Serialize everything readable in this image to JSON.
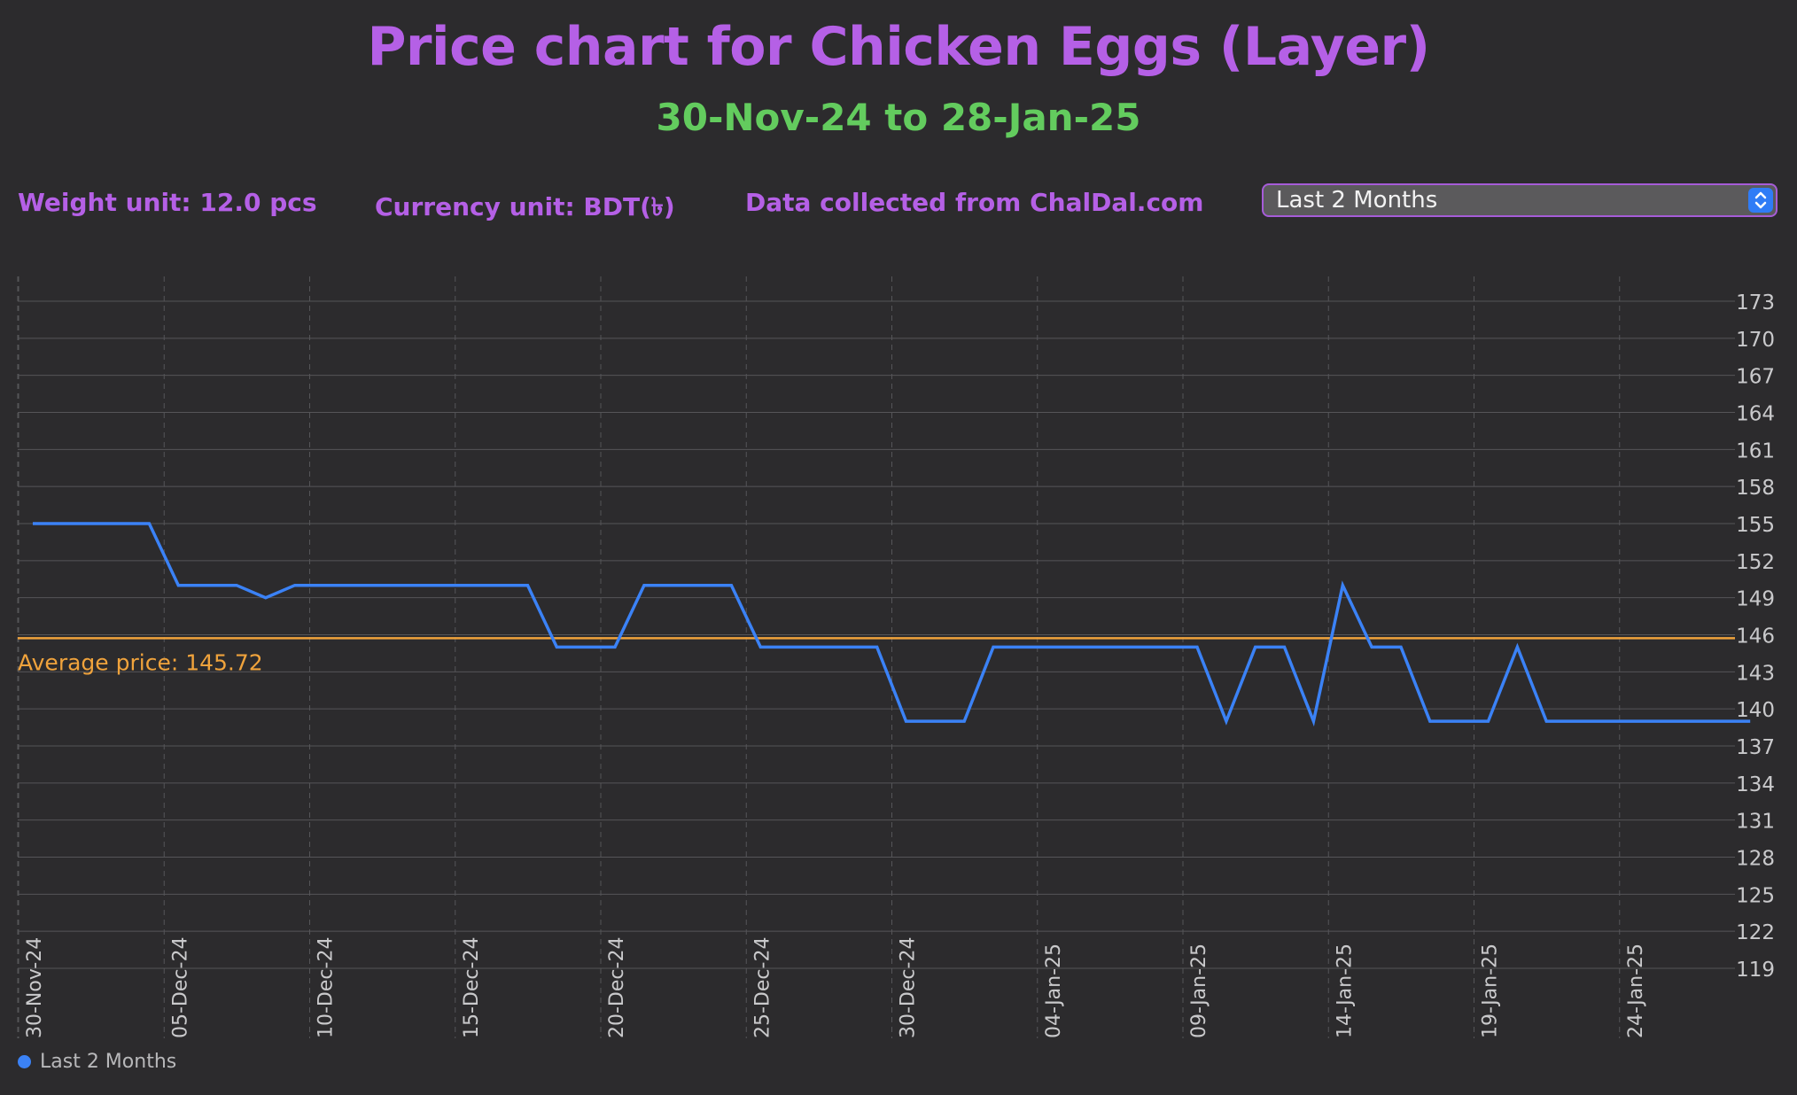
{
  "header": {
    "title": "Price chart for Chicken Eggs (Layer)",
    "subtitle": "30-Nov-24 to 28-Jan-25"
  },
  "info": {
    "weight": "Weight unit: 12.0 pcs",
    "currency": "Currency unit: BDT(৳)",
    "source": "Data collected from ChalDal.com"
  },
  "range_select": {
    "selected": "Last 2 Months",
    "icon": "up-down-chevron-icon"
  },
  "colors": {
    "title": "#b560e6",
    "subtitle": "#63cc5e",
    "series": "#3b82f6",
    "average": "#f0a33c",
    "grid": "#555558"
  },
  "chart_data": {
    "type": "line",
    "xlabel": "",
    "ylabel": "",
    "ylim": [
      119,
      173
    ],
    "y_ticks": [
      173,
      170,
      167,
      164,
      161,
      158,
      155,
      152,
      149,
      146,
      143,
      140,
      137,
      134,
      131,
      128,
      125,
      122,
      119
    ],
    "x_tick_labels": [
      "30-Nov-24",
      "05-Dec-24",
      "10-Dec-24",
      "15-Dec-24",
      "20-Dec-24",
      "25-Dec-24",
      "30-Dec-24",
      "04-Jan-25",
      "09-Jan-25",
      "14-Jan-25",
      "19-Jan-25",
      "24-Jan-25"
    ],
    "y_axis_position": "right",
    "grid": true,
    "legend_position": "bottom-left",
    "series": [
      {
        "name": "Last 2 Months",
        "x": [
          "30-Nov-24",
          "01-Dec-24",
          "02-Dec-24",
          "03-Dec-24",
          "04-Dec-24",
          "05-Dec-24",
          "06-Dec-24",
          "07-Dec-24",
          "08-Dec-24",
          "09-Dec-24",
          "10-Dec-24",
          "11-Dec-24",
          "12-Dec-24",
          "13-Dec-24",
          "14-Dec-24",
          "15-Dec-24",
          "16-Dec-24",
          "17-Dec-24",
          "18-Dec-24",
          "19-Dec-24",
          "20-Dec-24",
          "21-Dec-24",
          "22-Dec-24",
          "23-Dec-24",
          "24-Dec-24",
          "25-Dec-24",
          "26-Dec-24",
          "27-Dec-24",
          "28-Dec-24",
          "29-Dec-24",
          "30-Dec-24",
          "31-Dec-24",
          "01-Jan-25",
          "02-Jan-25",
          "03-Jan-25",
          "04-Jan-25",
          "05-Jan-25",
          "06-Jan-25",
          "07-Jan-25",
          "08-Jan-25",
          "09-Jan-25",
          "10-Jan-25",
          "11-Jan-25",
          "12-Jan-25",
          "13-Jan-25",
          "14-Jan-25",
          "15-Jan-25",
          "16-Jan-25",
          "17-Jan-25",
          "18-Jan-25",
          "19-Jan-25",
          "20-Jan-25",
          "21-Jan-25",
          "22-Jan-25",
          "23-Jan-25",
          "24-Jan-25",
          "25-Jan-25",
          "26-Jan-25",
          "27-Jan-25",
          "28-Jan-25"
        ],
        "values": [
          155,
          155,
          155,
          155,
          155,
          150,
          150,
          150,
          149,
          150,
          150,
          150,
          150,
          150,
          150,
          150,
          150,
          150,
          145,
          145,
          145,
          150,
          150,
          150,
          150,
          145,
          145,
          145,
          145,
          145,
          139,
          139,
          139,
          145,
          145,
          145,
          145,
          145,
          145,
          145,
          145,
          139,
          145,
          145,
          139,
          150,
          145,
          145,
          139,
          139,
          139,
          145,
          139,
          139,
          139,
          139,
          139,
          139,
          139,
          139
        ]
      }
    ],
    "reference_line": {
      "value": 145.72,
      "label": "Average price: 145.72"
    }
  },
  "legend": {
    "label": "Last 2 Months"
  }
}
